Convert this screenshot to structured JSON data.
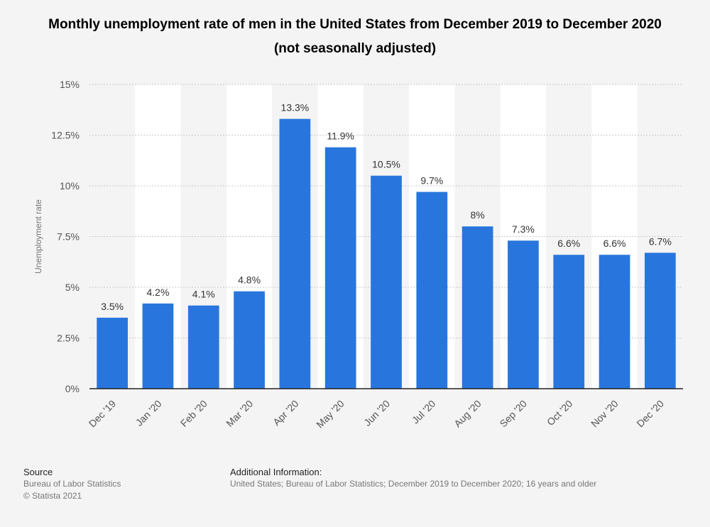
{
  "chart_data": {
    "type": "bar",
    "title": "Monthly unemployment rate of men in the United States from December 2019 to December 2020 (not seasonally adjusted)",
    "ylabel": "Unemployment rate",
    "xlabel": "",
    "categories": [
      "Dec '19",
      "Jan '20",
      "Feb '20",
      "Mar '20",
      "Apr '20",
      "May '20",
      "Jun '20",
      "Jul '20",
      "Aug '20",
      "Sep '20",
      "Oct '20",
      "Nov '20",
      "Dec '20"
    ],
    "values": [
      3.5,
      4.2,
      4.1,
      4.8,
      13.3,
      11.9,
      10.5,
      9.7,
      8,
      7.3,
      6.6,
      6.6,
      6.7
    ],
    "value_labels": [
      "3.5%",
      "4.2%",
      "4.1%",
      "4.8%",
      "13.3%",
      "11.9%",
      "10.5%",
      "9.7%",
      "8%",
      "7.3%",
      "6.6%",
      "6.6%",
      "6.7%"
    ],
    "ylim": [
      0,
      15
    ],
    "yticks": [
      0,
      2.5,
      5,
      7.5,
      10,
      12.5,
      15
    ],
    "ytick_labels": [
      "0%",
      "2.5%",
      "5%",
      "7.5%",
      "10%",
      "12.5%",
      "15%"
    ],
    "grid": true,
    "bar_color": "#2876dd",
    "alt_band_color": "#ffffff"
  },
  "footer": {
    "source_heading": "Source",
    "source_lines": [
      "Bureau of Labor Statistics",
      "© Statista 2021"
    ],
    "info_heading": "Additional Information:",
    "info_text": "United States; Bureau of Labor Statistics; December 2019 to December 2020; 16 years and older"
  }
}
